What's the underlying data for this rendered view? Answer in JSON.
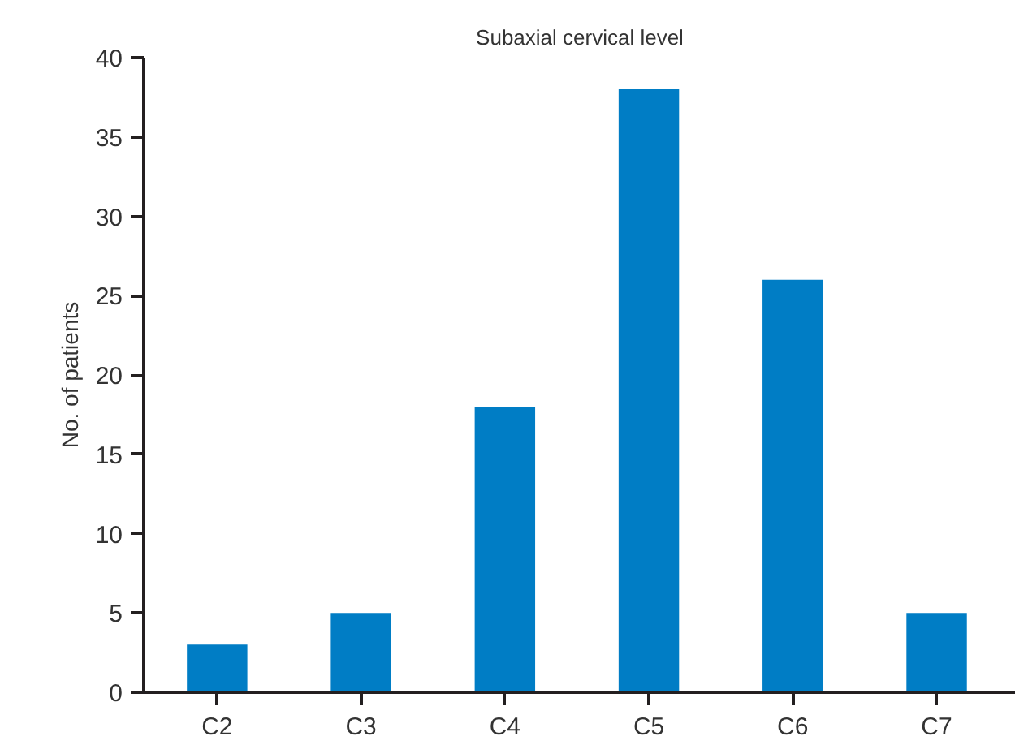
{
  "chart_data": {
    "type": "bar",
    "title": "Subaxial cervical level",
    "ylabel": "No. of patients",
    "categories": [
      "C2",
      "C3",
      "C4",
      "C5",
      "C6",
      "C7"
    ],
    "values": [
      3,
      5,
      18,
      38,
      26,
      5
    ],
    "color": "#007dc5",
    "ylim": [
      0,
      40
    ],
    "yticks": [
      0,
      5,
      10,
      15,
      20,
      25,
      30,
      35,
      40
    ],
    "grid": false
  }
}
